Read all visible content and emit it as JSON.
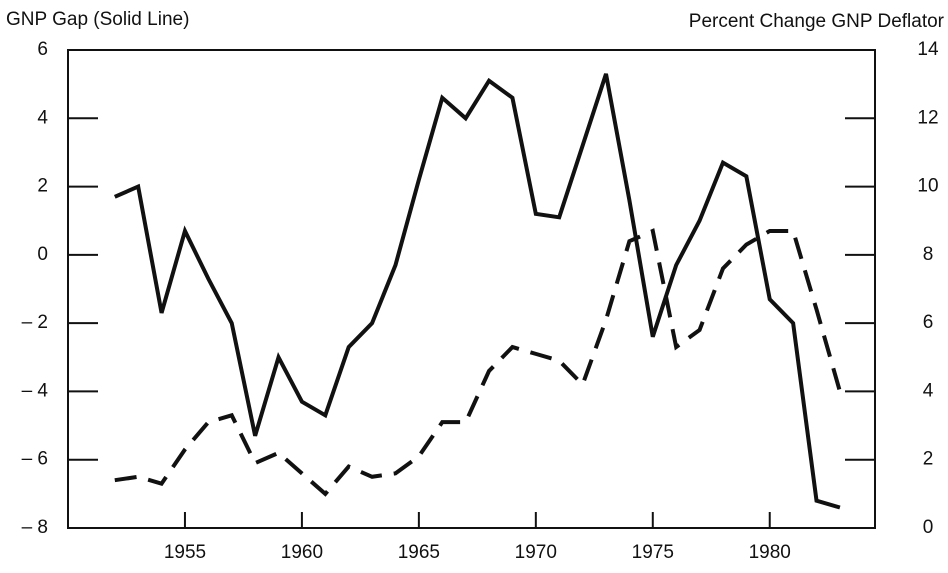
{
  "chart_data": {
    "type": "line",
    "y_label": "GNP Gap (Solid Line)",
    "y2_label": "Percent Change GNP Deflator",
    "x": [
      1952,
      1953,
      1954,
      1955,
      1956,
      1957,
      1958,
      1959,
      1960,
      1961,
      1962,
      1963,
      1964,
      1965,
      1966,
      1967,
      1968,
      1969,
      1970,
      1971,
      1972,
      1973,
      1974,
      1975,
      1976,
      1977,
      1978,
      1979,
      1980,
      1981,
      1982,
      1983
    ],
    "series": [
      {
        "color": "#111111",
        "style": "solid",
        "axis": "y",
        "values": [
          1.7,
          2.0,
          -1.7,
          0.7,
          -0.7,
          -2.0,
          -5.3,
          -3.0,
          -4.3,
          -4.7,
          -2.7,
          -2.0,
          -0.3,
          2.2,
          4.6,
          4.0,
          5.1,
          4.6,
          1.2,
          1.1,
          3.2,
          5.3,
          1.6,
          -2.4,
          -0.3,
          1.0,
          2.7,
          2.3,
          -1.3,
          -2.0,
          -7.2,
          -7.4
        ]
      },
      {
        "color": "#111111",
        "style": "dashed",
        "axis": "y2",
        "values": [
          1.4,
          1.5,
          1.3,
          2.3,
          3.1,
          3.3,
          1.9,
          2.2,
          1.6,
          1.0,
          1.8,
          1.5,
          1.6,
          2.1,
          3.1,
          3.1,
          4.6,
          5.3,
          5.1,
          4.9,
          4.2,
          6.1,
          8.4,
          8.7,
          5.3,
          5.8,
          7.6,
          8.3,
          8.7,
          8.7,
          6.4,
          4.0
        ]
      }
    ],
    "xlim": [
      1950,
      1984.5
    ],
    "xticks": [
      1955,
      1960,
      1965,
      1970,
      1975,
      1980
    ],
    "ylim": [
      -8,
      6
    ],
    "yticks": [
      {
        "value": -8,
        "label": "– 8"
      },
      {
        "value": -6,
        "label": "– 6"
      },
      {
        "value": -4,
        "label": "– 4"
      },
      {
        "value": -2,
        "label": "– 2"
      },
      0,
      2,
      4,
      6
    ],
    "y2lim": [
      0,
      14
    ],
    "y2ticks": [
      0,
      2,
      4,
      6,
      8,
      10,
      12,
      14
    ]
  }
}
